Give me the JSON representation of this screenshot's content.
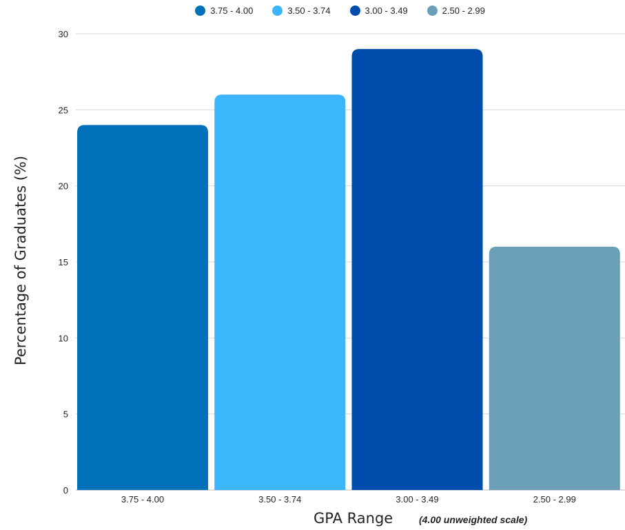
{
  "chart_data": {
    "type": "bar",
    "categories": [
      "3.75 - 4.00",
      "3.50 - 3.74",
      "3.00 - 3.49",
      "2.50 - 2.99"
    ],
    "values": [
      24,
      26,
      29,
      16
    ],
    "colors": [
      "#0070b8",
      "#3bb6fd",
      "#004cad",
      "#6b9fb8"
    ],
    "legend": [
      "3.75 - 4.00",
      "3.50 - 3.74",
      "3.00 - 3.49",
      "2.50 - 2.99"
    ],
    "legend_position": "top",
    "ylabel": "Percentage of Graduates (%)",
    "xlabel": "GPA Range",
    "xlabel_note": "(4.00 unweighted scale)",
    "ylim": [
      0,
      30
    ],
    "yticks": [
      0,
      5,
      10,
      15,
      20,
      25,
      30
    ],
    "grid": true
  }
}
